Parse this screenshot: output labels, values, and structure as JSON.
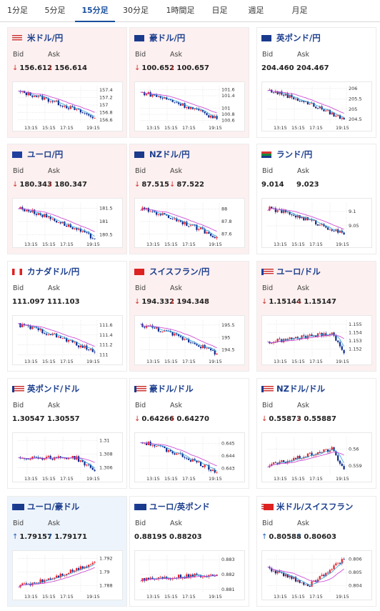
{
  "tabs": [
    {
      "label": "1分足",
      "active": false
    },
    {
      "label": "5分足",
      "active": false
    },
    {
      "label": "15分足",
      "active": true
    },
    {
      "label": "30分足",
      "active": false
    },
    {
      "label": "1時間足",
      "active": false
    },
    {
      "label": "日足",
      "active": false
    },
    {
      "label": "週足",
      "active": false
    },
    {
      "label": "月足",
      "active": false
    }
  ],
  "labels": {
    "bid": "Bid",
    "ask": "Ask"
  },
  "colors": {
    "up": "#e8212a",
    "down": "#0b2a8c",
    "ma_fast": "#2aa3d8",
    "ma_slow": "#c83ad0",
    "arrow_down": "#d0312d",
    "arrow_up": "#1a5bb8"
  },
  "pairs": [
    {
      "name": "米ドル/円",
      "flag": "us-flag",
      "bg": "pink",
      "arrow": "down",
      "bid": "156.612",
      "ask": "156.614",
      "chart_data": {
        "type": "candlestick",
        "x_ticks": [
          "13:15",
          "15:15",
          "17:15",
          "19:15"
        ],
        "y_ticks": [
          "157.4",
          "157.2",
          "157",
          "156.8",
          "156.6"
        ],
        "ylim": [
          156.5,
          157.5
        ],
        "open": 157.35,
        "close": 156.65,
        "trend": "down"
      }
    },
    {
      "name": "豪ドル/円",
      "flag": "au-flag",
      "bg": "pink",
      "arrow": "down",
      "bid": "100.652",
      "ask": "100.657",
      "chart_data": {
        "type": "candlestick",
        "x_ticks": [
          "13:15",
          "15:15",
          "17:15",
          "19:15"
        ],
        "y_ticks": [
          "101.6",
          "101.4",
          "101",
          "100.8",
          "100.6"
        ],
        "ylim": [
          100.5,
          101.7
        ],
        "open": 101.5,
        "close": 100.65,
        "trend": "down"
      }
    },
    {
      "name": "英ポンド/円",
      "flag": "gb-flag",
      "bg": "white",
      "arrow": "none",
      "bid": "204.460",
      "ask": "204.467",
      "chart_data": {
        "type": "candlestick",
        "x_ticks": [
          "13:15",
          "15:15",
          "17:15",
          "19:15"
        ],
        "y_ticks": [
          "206",
          "205.5",
          "205",
          "204.5"
        ],
        "ylim": [
          204.3,
          206.1
        ],
        "open": 205.9,
        "close": 204.5,
        "trend": "down"
      }
    },
    {
      "name": "ユーロ/円",
      "flag": "eu-flag",
      "bg": "pink",
      "arrow": "down",
      "bid": "180.343",
      "ask": "180.347",
      "chart_data": {
        "type": "candlestick",
        "x_ticks": [
          "13:15",
          "15:15",
          "17:15",
          "19:15"
        ],
        "y_ticks": [
          "181.5",
          "181",
          "180.5"
        ],
        "ylim": [
          180.3,
          181.7
        ],
        "open": 181.5,
        "close": 180.35,
        "trend": "down"
      }
    },
    {
      "name": "NZドル/円",
      "flag": "nz-flag",
      "bg": "pink",
      "arrow": "down",
      "bid": "87.515",
      "ask": "87.522",
      "chart_data": {
        "type": "candlestick",
        "x_ticks": [
          "13:15",
          "15:15",
          "17:15",
          "19:15"
        ],
        "y_ticks": [
          "88",
          "87.8",
          "87.6"
        ],
        "ylim": [
          87.5,
          88.1
        ],
        "open": 88.0,
        "close": 87.55,
        "trend": "down"
      }
    },
    {
      "name": "ランド/円",
      "flag": "za-flag",
      "bg": "white",
      "arrow": "none",
      "bid": "9.014",
      "ask": "9.023",
      "chart_data": {
        "type": "candlestick",
        "x_ticks": [
          "13:15",
          "15:15",
          "17:15",
          "19:15"
        ],
        "y_ticks": [
          "9.1",
          "9.05"
        ],
        "ylim": [
          9.0,
          9.13
        ],
        "open": 9.11,
        "close": 9.02,
        "trend": "down"
      }
    },
    {
      "name": "カナダドル/円",
      "flag": "ca-flag",
      "bg": "white",
      "arrow": "none",
      "bid": "111.097",
      "ask": "111.103",
      "chart_data": {
        "type": "candlestick",
        "x_ticks": [
          "13:15",
          "15:15",
          "17:15",
          "19:15"
        ],
        "y_ticks": [
          "111.6",
          "111.4",
          "111.2",
          "111"
        ],
        "ylim": [
          110.95,
          111.7
        ],
        "open": 111.6,
        "close": 111.05,
        "trend": "down"
      }
    },
    {
      "name": "スイスフラン/円",
      "flag": "ch-flag",
      "bg": "pink",
      "arrow": "down",
      "bid": "194.332",
      "ask": "194.348",
      "chart_data": {
        "type": "candlestick",
        "x_ticks": [
          "13:15",
          "15:15",
          "17:15",
          "19:15"
        ],
        "y_ticks": [
          "195.5",
          "195",
          "194.5"
        ],
        "ylim": [
          194.2,
          195.7
        ],
        "open": 195.5,
        "close": 194.35,
        "trend": "down"
      }
    },
    {
      "name": "ユーロ/ドル",
      "flag": "eu-us-flag",
      "bg": "pink",
      "arrow": "down",
      "bid": "1.15144",
      "ask": "1.15147",
      "chart_data": {
        "type": "candlestick",
        "x_ticks": [
          "13:15",
          "15:15",
          "17:15",
          "19:15"
        ],
        "y_ticks": [
          "1.155",
          "1.154",
          "1.153",
          "1.152"
        ],
        "ylim": [
          1.151,
          1.1555
        ],
        "open": 1.1528,
        "close": 1.1515,
        "trend": "up-then-drop"
      }
    },
    {
      "name": "英ポンド/ドル",
      "flag": "gb-us-flag",
      "bg": "white",
      "arrow": "none",
      "bid": "1.30547",
      "ask": "1.30557",
      "chart_data": {
        "type": "candlestick",
        "x_ticks": [
          "13:15",
          "15:15",
          "17:15",
          "19:15"
        ],
        "y_ticks": [
          "1.31",
          "1.308",
          "1.306"
        ],
        "ylim": [
          1.305,
          1.3105
        ],
        "open": 1.3075,
        "close": 1.3055,
        "trend": "flat-then-drop"
      }
    },
    {
      "name": "豪ドル/ドル",
      "flag": "au-us-flag",
      "bg": "white",
      "arrow": "down",
      "bid": "0.64266",
      "ask": "0.64270",
      "chart_data": {
        "type": "candlestick",
        "x_ticks": [
          "13:15",
          "15:15",
          "17:15",
          "19:15"
        ],
        "y_ticks": [
          "0.645",
          "0.644",
          "0.643"
        ],
        "ylim": [
          0.6425,
          0.6455
        ],
        "open": 0.6451,
        "close": 0.6427,
        "trend": "down"
      }
    },
    {
      "name": "NZドル/ドル",
      "flag": "nz-us-flag",
      "bg": "white",
      "arrow": "down",
      "bid": "0.55873",
      "ask": "0.55887",
      "chart_data": {
        "type": "candlestick",
        "x_ticks": [
          "13:15",
          "15:15",
          "17:15",
          "19:15"
        ],
        "y_ticks": [
          "0.56",
          "0.559"
        ],
        "ylim": [
          0.5585,
          0.5607
        ],
        "open": 0.559,
        "close": 0.5588,
        "trend": "up-then-drop"
      }
    },
    {
      "name": "ユーロ/豪ドル",
      "flag": "eu-au-flag",
      "bg": "blue",
      "arrow": "up",
      "bid": "1.79157",
      "ask": "1.79171",
      "chart_data": {
        "type": "candlestick",
        "x_ticks": [
          "13:15",
          "15:15",
          "17:15",
          "19:15"
        ],
        "y_ticks": [
          "1.792",
          "1.79",
          "1.788"
        ],
        "ylim": [
          1.787,
          1.7925
        ],
        "open": 1.788,
        "close": 1.7915,
        "trend": "up"
      }
    },
    {
      "name": "ユーロ/英ポンド",
      "flag": "eu-gb-flag",
      "bg": "white",
      "arrow": "none",
      "bid": "0.88195",
      "ask": "0.88203",
      "chart_data": {
        "type": "candlestick",
        "x_ticks": [
          "13:15",
          "15:15",
          "17:15",
          "19:15"
        ],
        "y_ticks": [
          "0.883",
          "0.882",
          "0.881"
        ],
        "ylim": [
          0.8808,
          0.8833
        ],
        "open": 0.8817,
        "close": 0.882,
        "trend": "flat"
      }
    },
    {
      "name": "米ドル/スイスフラン",
      "flag": "us-ch-flag",
      "bg": "white",
      "arrow": "up",
      "bid": "0.80588",
      "ask": "0.80603",
      "chart_data": {
        "type": "candlestick",
        "x_ticks": [
          "13:15",
          "15:15",
          "17:15",
          "19:15"
        ],
        "y_ticks": [
          "0.806",
          "0.805",
          "0.804"
        ],
        "ylim": [
          0.8035,
          0.8063
        ],
        "open": 0.8053,
        "close": 0.806,
        "trend": "down-then-up"
      }
    }
  ]
}
